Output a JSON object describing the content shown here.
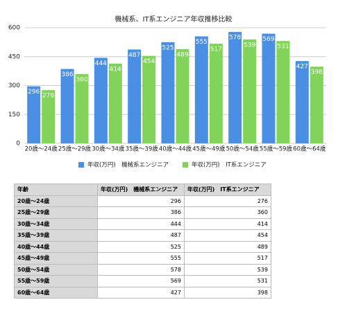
{
  "chart_data": {
    "type": "bar",
    "title": "機械系、IT系エンジニア年収推移比較",
    "categories": [
      "20歳～24歳",
      "25歳～29歳",
      "30歳～34歳",
      "35歳～39歳",
      "40歳～44歳",
      "45歳～49歳",
      "50歳～54歳",
      "55歳～59歳",
      "60歳～64歳"
    ],
    "series": [
      {
        "name": "年収(万円)　機械系エンジニア",
        "color": "#4a8fe4",
        "values": [
          296,
          386,
          444,
          487,
          525,
          555,
          578,
          569,
          427
        ]
      },
      {
        "name": "年収(万円)　IT系エンジニア",
        "color": "#82d35a",
        "values": [
          276,
          360,
          414,
          454,
          489,
          517,
          539,
          531,
          398
        ]
      }
    ],
    "ylim": [
      0,
      600
    ],
    "yticks": [
      0,
      150,
      300,
      450,
      600
    ],
    "grid": true,
    "legend": "bottom"
  },
  "table": {
    "header": [
      "年齢",
      "年収(万円)　機械系エンジニア",
      "年収(万円)　IT系エンジニア"
    ],
    "rows": [
      [
        "20歳～24歳",
        296,
        276
      ],
      [
        "25歳～29歳",
        386,
        360
      ],
      [
        "30歳～34歳",
        444,
        414
      ],
      [
        "35歳～39歳",
        487,
        454
      ],
      [
        "40歳～44歳",
        525,
        489
      ],
      [
        "45歳～49歳",
        555,
        517
      ],
      [
        "50歳～54歳",
        578,
        539
      ],
      [
        "55歳～59歳",
        569,
        531
      ],
      [
        "60歳～64歳",
        427,
        398
      ]
    ]
  }
}
